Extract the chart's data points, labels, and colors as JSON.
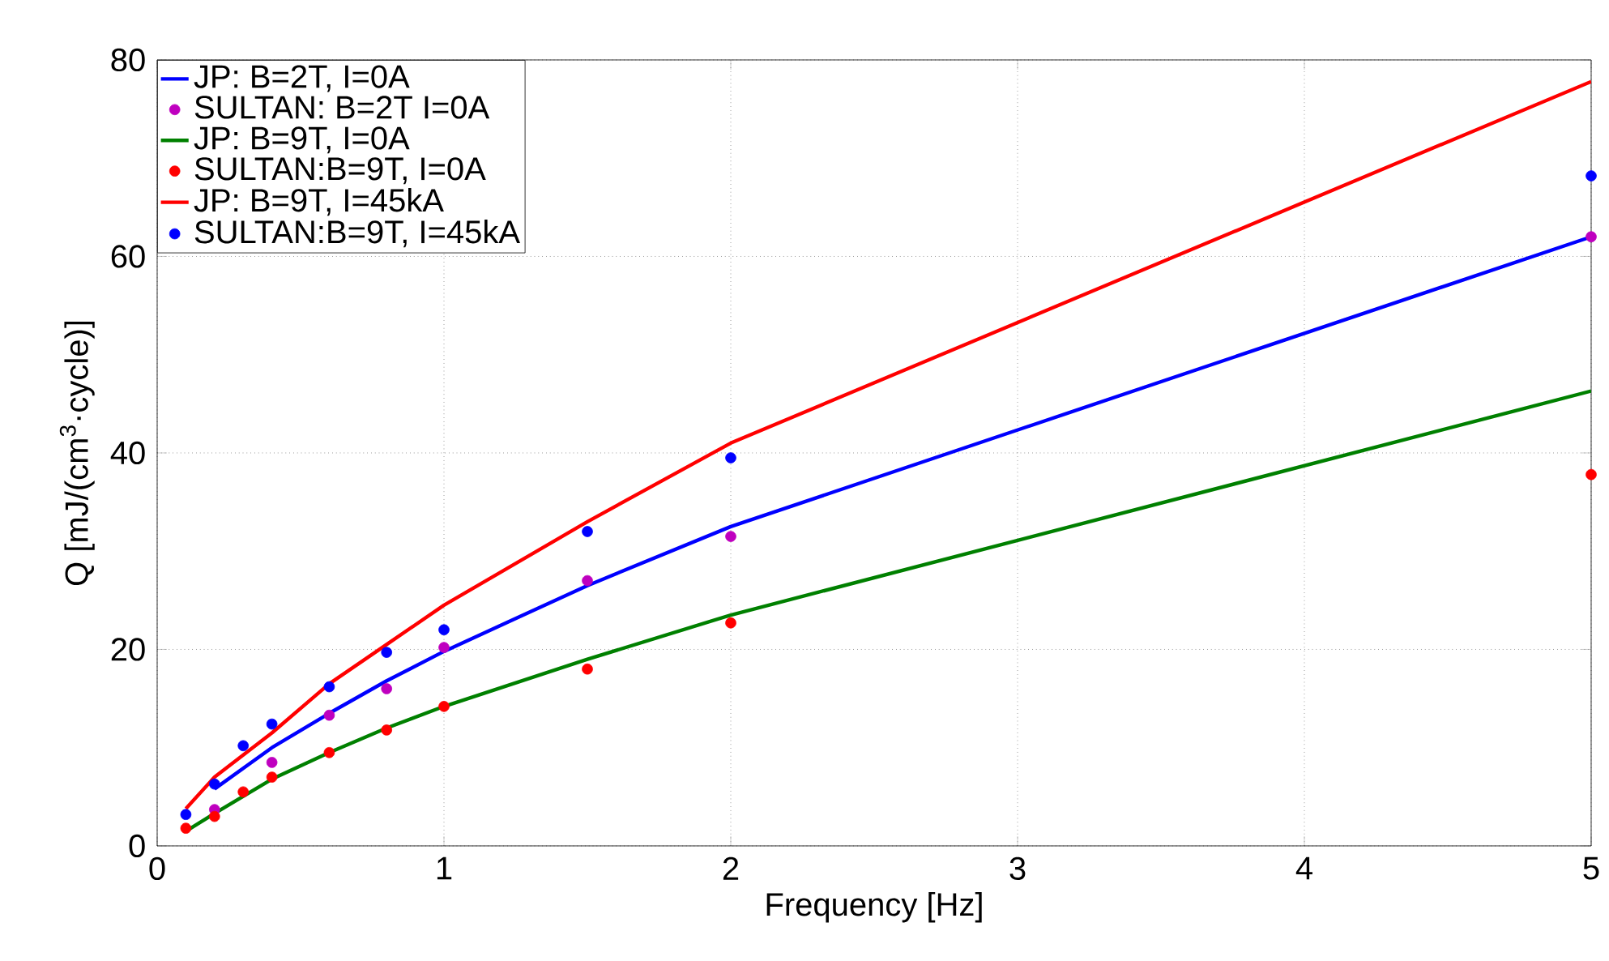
{
  "chart_data": {
    "type": "line",
    "xlabel": "Frequency [Hz]",
    "ylabel": "Q [mJ/(cm$^{3}$·cycle)]",
    "xlim": [
      0,
      5
    ],
    "ylim": [
      0,
      80
    ],
    "xticks": [
      0,
      1,
      2,
      3,
      4,
      5
    ],
    "yticks": [
      0,
      20,
      40,
      60,
      80
    ],
    "grid": true,
    "legend": "top left",
    "series": [
      {
        "name": "JP: B=2T, I=0A",
        "color": "#0000ff",
        "x": [
          0.2,
          0.4,
          0.6,
          0.8,
          1,
          1.5,
          2,
          5
        ],
        "values": [
          5.8,
          10,
          13.5,
          16.8,
          19.8,
          26.5,
          32.5,
          62
        ]
      },
      {
        "name": "SULTAN: B=2T I=0A",
        "type": "scatter",
        "marker": "circle",
        "color": "#bf00bf",
        "x": [
          0.2,
          0.4,
          0.6,
          0.8,
          1,
          1.5,
          2,
          5
        ],
        "values": [
          3.7,
          8.5,
          13.3,
          16,
          20.2,
          27,
          31.5,
          62
        ]
      },
      {
        "name": "JP: B=9T, I=0A",
        "color": "#008000",
        "x": [
          0.1,
          0.2,
          0.4,
          0.6,
          0.8,
          1,
          1.5,
          2,
          5
        ],
        "values": [
          1.5,
          3.3,
          6.8,
          9.5,
          12,
          14.2,
          19,
          23.5,
          46.3
        ]
      },
      {
        "name": "SULTAN:B=9T, I=0A",
        "type": "scatter",
        "marker": "circle",
        "color": "#ff0000",
        "x": [
          0.1,
          0.2,
          0.3,
          0.4,
          0.6,
          0.8,
          1,
          1.5,
          2,
          5
        ],
        "values": [
          1.8,
          3,
          5.5,
          7,
          9.5,
          11.8,
          14.2,
          18,
          22.7,
          37.8
        ]
      },
      {
        "name": "JP: B=9T, I=45kA",
        "color": "#ff0000",
        "x": [
          0.1,
          0.2,
          0.4,
          0.6,
          0.8,
          1,
          1.5,
          2,
          5
        ],
        "values": [
          3.8,
          7,
          11.5,
          16.5,
          20.5,
          24.5,
          33,
          41,
          77.8
        ]
      },
      {
        "name": "SULTAN:B=9T, I=45kA",
        "type": "scatter",
        "marker": "circle",
        "color": "#0000ff",
        "x": [
          0.1,
          0.2,
          0.3,
          0.4,
          0.6,
          0.8,
          1,
          1.5,
          2,
          5
        ],
        "values": [
          3.2,
          6.3,
          10.2,
          12.4,
          16.2,
          19.7,
          22,
          32,
          39.5,
          68.2
        ]
      }
    ]
  }
}
